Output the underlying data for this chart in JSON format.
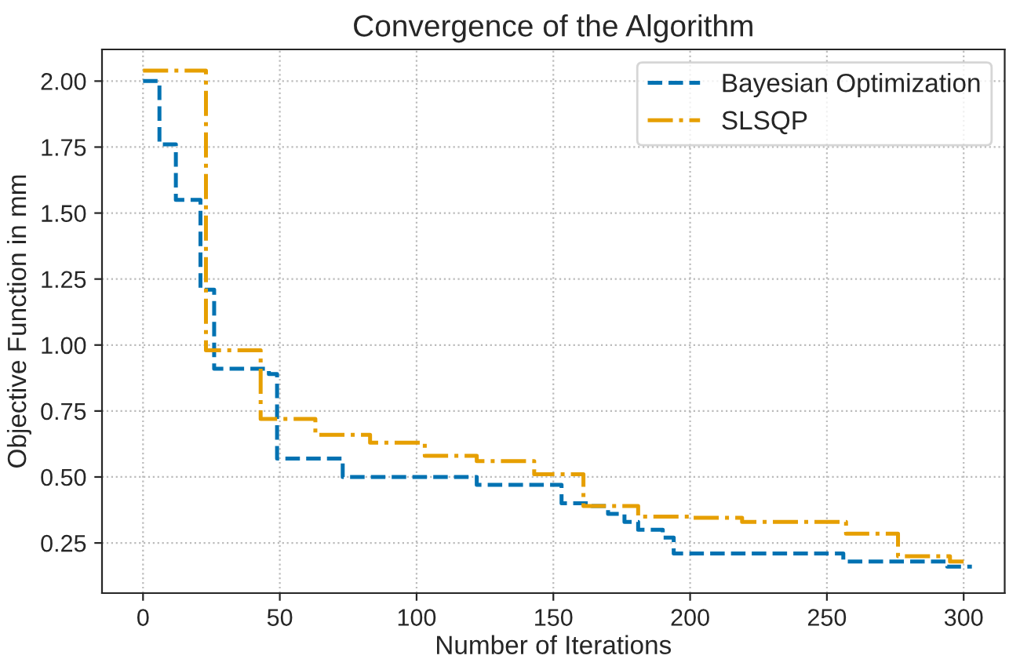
{
  "chart_data": {
    "type": "step",
    "title": "Convergence of the Algorithm",
    "xlabel": "Number of Iterations",
    "ylabel": "Objective Function in mm",
    "xlim": [
      -15,
      315
    ],
    "xticks": [
      0,
      50,
      100,
      150,
      200,
      250,
      300
    ],
    "ylim": [
      0.06,
      2.12
    ],
    "yticks": [
      {
        "value": 0.25,
        "label": "0.25"
      },
      {
        "value": 0.5,
        "label": "0.50"
      },
      {
        "value": 0.75,
        "label": "0.75"
      },
      {
        "value": 1.0,
        "label": "1.00"
      },
      {
        "value": 1.25,
        "label": "1.25"
      },
      {
        "value": 1.5,
        "label": "1.50"
      },
      {
        "value": 1.75,
        "label": "1.75"
      },
      {
        "value": 2.0,
        "label": "2.00"
      }
    ],
    "grid": true,
    "legend": "top right",
    "series": [
      {
        "name": "Bayesian Optimization",
        "color": "#0072b2",
        "line_style": "dashed",
        "x": [
          0,
          6,
          12,
          21,
          26,
          46,
          49,
          73,
          122,
          153,
          164,
          170,
          176,
          181,
          190,
          194,
          256,
          294,
          303
        ],
        "values": [
          2.0,
          1.76,
          1.55,
          1.21,
          0.91,
          0.89,
          0.57,
          0.5,
          0.47,
          0.4,
          0.39,
          0.36,
          0.33,
          0.3,
          0.27,
          0.21,
          0.18,
          0.16,
          0.16
        ]
      },
      {
        "name": "SLSQP",
        "color": "#e69f00",
        "line_style": "dashdot",
        "x": [
          0,
          23,
          43,
          63,
          83,
          103,
          122,
          143,
          161,
          181,
          200,
          219,
          257,
          276,
          295,
          300
        ],
        "values": [
          2.04,
          0.98,
          0.72,
          0.66,
          0.63,
          0.58,
          0.56,
          0.51,
          0.39,
          0.35,
          0.345,
          0.33,
          0.285,
          0.2,
          0.18,
          0.18
        ]
      }
    ]
  }
}
